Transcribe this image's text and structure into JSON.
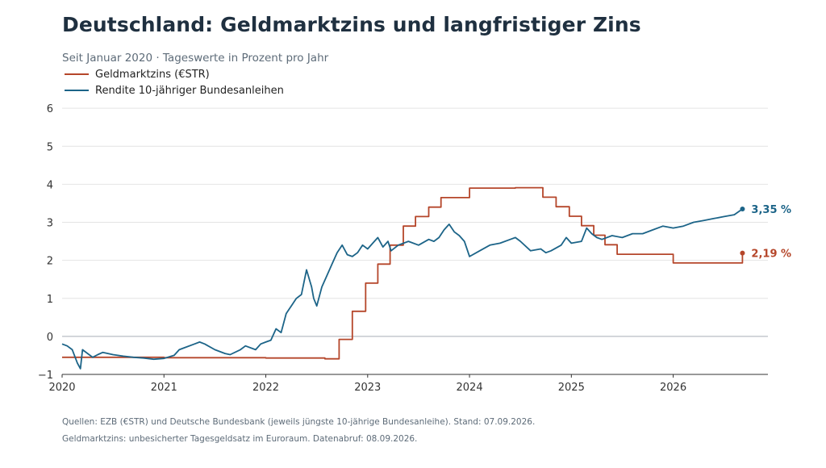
{
  "title": "Deutschland: Geldmarktzins und langfristiger Zins",
  "subtitle": "Seit Januar 2020 · Tageswerte in Prozent pro Jahr",
  "footnotes": [
    "Quellen: EZB (€STR) und Deutsche Bundesbank (jeweils jüngste 10-jährige Bundesanleihe). Stand: 07.09.2026.",
    "Geldmarktzins: unbesicherter Tagesgeldsatz im Euroraum. Datenabruf: 08.09.2026."
  ],
  "colors": {
    "estr": "#b5462a",
    "bund": "#1c6488",
    "grid": "#e4e4e4",
    "zero": "#b9bec4",
    "axis": "#333333"
  },
  "chart_data": {
    "type": "line",
    "xlabel": "",
    "ylabel": "",
    "xlim": [
      2020.0,
      2026.93
    ],
    "ylim": [
      -1,
      6.3
    ],
    "yticks": [
      -1,
      0,
      1,
      2,
      3,
      4,
      5,
      6
    ],
    "ytick_labels": [
      "−1",
      "0",
      "1",
      "2",
      "3",
      "4",
      "5",
      "6"
    ],
    "xticks": [
      2020,
      2021,
      2022,
      2023,
      2024,
      2025,
      2026
    ],
    "xtick_labels": [
      "2020",
      "2021",
      "2022",
      "2023",
      "2024",
      "2025",
      "2026"
    ],
    "grid": "horizontal",
    "legend_position": "top-left",
    "series": [
      {
        "name": "Geldmarktzins (€STR)",
        "color": "#b5462a",
        "step": true,
        "end_label": "2,19 %",
        "x": [
          2020.0,
          2021.0,
          2022.0,
          2022.58,
          2022.72,
          2022.85,
          2022.98,
          2023.1,
          2023.22,
          2023.35,
          2023.47,
          2023.6,
          2023.72,
          2024.0,
          2024.45,
          2024.72,
          2024.85,
          2024.98,
          2025.1,
          2025.22,
          2025.33,
          2025.45,
          2026.0,
          2026.5,
          2026.68
        ],
        "y": [
          -0.55,
          -0.56,
          -0.57,
          -0.59,
          -0.08,
          0.66,
          1.4,
          1.9,
          2.4,
          2.9,
          3.15,
          3.4,
          3.65,
          3.9,
          3.91,
          3.66,
          3.41,
          3.16,
          2.91,
          2.66,
          2.41,
          2.16,
          1.93,
          1.93,
          2.19
        ]
      },
      {
        "name": "Rendite 10-jähriger Bundesanleihen",
        "color": "#1c6488",
        "step": false,
        "end_label": "3,35 %",
        "x": [
          2020.0,
          2020.05,
          2020.1,
          2020.15,
          2020.18,
          2020.2,
          2020.25,
          2020.3,
          2020.35,
          2020.4,
          2020.5,
          2020.6,
          2020.7,
          2020.8,
          2020.9,
          2021.0,
          2021.1,
          2021.15,
          2021.2,
          2021.3,
          2021.35,
          2021.4,
          2021.5,
          2021.6,
          2021.65,
          2021.75,
          2021.8,
          2021.9,
          2021.95,
          2022.0,
          2022.05,
          2022.1,
          2022.15,
          2022.2,
          2022.25,
          2022.3,
          2022.35,
          2022.4,
          2022.45,
          2022.47,
          2022.5,
          2022.55,
          2022.6,
          2022.65,
          2022.7,
          2022.75,
          2022.8,
          2022.85,
          2022.9,
          2022.95,
          2023.0,
          2023.05,
          2023.1,
          2023.15,
          2023.2,
          2023.23,
          2023.3,
          2023.4,
          2023.5,
          2023.6,
          2023.65,
          2023.7,
          2023.75,
          2023.8,
          2023.85,
          2023.9,
          2023.95,
          2024.0,
          2024.1,
          2024.2,
          2024.3,
          2024.4,
          2024.45,
          2024.5,
          2024.6,
          2024.7,
          2024.75,
          2024.8,
          2024.9,
          2024.95,
          2025.0,
          2025.1,
          2025.15,
          2025.2,
          2025.25,
          2025.3,
          2025.4,
          2025.5,
          2025.6,
          2025.7,
          2025.8,
          2025.9,
          2026.0,
          2026.1,
          2026.2,
          2026.3,
          2026.4,
          2026.5,
          2026.6,
          2026.68
        ],
        "y": [
          -0.2,
          -0.25,
          -0.35,
          -0.7,
          -0.85,
          -0.35,
          -0.45,
          -0.55,
          -0.48,
          -0.42,
          -0.48,
          -0.52,
          -0.55,
          -0.57,
          -0.6,
          -0.58,
          -0.5,
          -0.35,
          -0.3,
          -0.2,
          -0.15,
          -0.2,
          -0.35,
          -0.45,
          -0.48,
          -0.35,
          -0.25,
          -0.35,
          -0.2,
          -0.15,
          -0.1,
          0.2,
          0.1,
          0.6,
          0.8,
          1.0,
          1.1,
          1.75,
          1.3,
          1.0,
          0.8,
          1.3,
          1.6,
          1.9,
          2.2,
          2.4,
          2.15,
          2.1,
          2.2,
          2.4,
          2.3,
          2.45,
          2.6,
          2.35,
          2.5,
          2.25,
          2.4,
          2.5,
          2.4,
          2.55,
          2.5,
          2.6,
          2.8,
          2.95,
          2.75,
          2.65,
          2.5,
          2.1,
          2.25,
          2.4,
          2.45,
          2.55,
          2.6,
          2.5,
          2.25,
          2.3,
          2.2,
          2.25,
          2.4,
          2.6,
          2.45,
          2.5,
          2.85,
          2.7,
          2.6,
          2.55,
          2.65,
          2.6,
          2.7,
          2.7,
          2.8,
          2.9,
          2.85,
          2.9,
          3.0,
          3.05,
          3.1,
          3.15,
          3.2,
          3.35
        ]
      }
    ]
  }
}
